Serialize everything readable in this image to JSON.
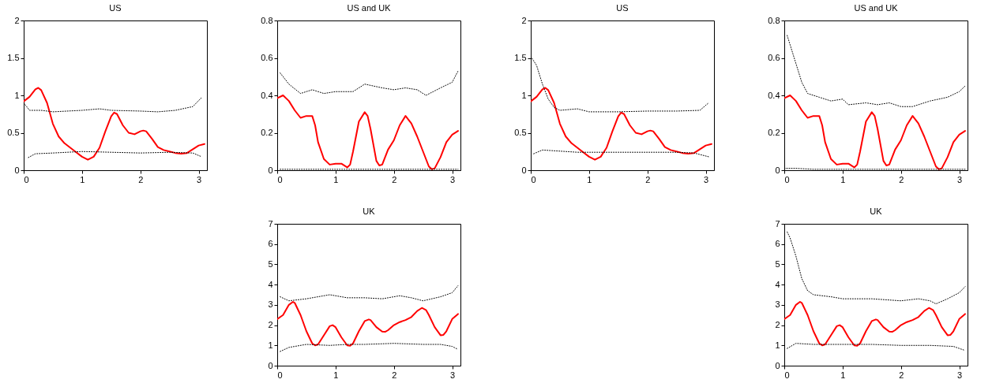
{
  "chart_data": [
    {
      "type": "line",
      "title": "US",
      "xlim": [
        0,
        3.1416
      ],
      "xticks": [
        0,
        1,
        2,
        3
      ],
      "ylim": [
        0,
        2
      ],
      "yticks": [
        0,
        0.5,
        1,
        1.5,
        2
      ],
      "grid": false,
      "series": [
        {
          "color": "#ff0000",
          "x": [
            0,
            0.1,
            0.2,
            0.25,
            0.3,
            0.4,
            0.5,
            0.6,
            0.7,
            0.8,
            0.9,
            1.0,
            1.1,
            1.2,
            1.3,
            1.4,
            1.5,
            1.55,
            1.6,
            1.7,
            1.8,
            1.9,
            2.0,
            2.05,
            2.1,
            2.2,
            2.3,
            2.4,
            2.5,
            2.6,
            2.7,
            2.8,
            2.9,
            3.0,
            3.1
          ],
          "values": [
            0.92,
            0.98,
            1.08,
            1.1,
            1.07,
            0.9,
            0.62,
            0.45,
            0.36,
            0.3,
            0.24,
            0.18,
            0.14,
            0.18,
            0.3,
            0.52,
            0.72,
            0.77,
            0.75,
            0.6,
            0.5,
            0.48,
            0.52,
            0.53,
            0.52,
            0.42,
            0.31,
            0.27,
            0.25,
            0.23,
            0.22,
            0.23,
            0.28,
            0.33,
            0.35
          ]
        },
        {
          "color": "#000000",
          "line_style": "dotted",
          "x": [
            0,
            0.1,
            0.3,
            0.5,
            1.0,
            1.3,
            1.5,
            2.0,
            2.3,
            2.6,
            2.9,
            3.05
          ],
          "values": [
            0.9,
            0.8,
            0.8,
            0.78,
            0.8,
            0.82,
            0.8,
            0.79,
            0.78,
            0.8,
            0.85,
            0.97
          ]
        },
        {
          "color": "#000000",
          "line_style": "dotted",
          "x": [
            0.08,
            0.2,
            0.5,
            1.0,
            1.5,
            2.0,
            2.5,
            2.9,
            3.05
          ],
          "values": [
            0.17,
            0.22,
            0.23,
            0.25,
            0.24,
            0.23,
            0.24,
            0.23,
            0.18
          ]
        }
      ]
    },
    {
      "type": "line",
      "title": "US and UK",
      "xlim": [
        0,
        3.1416
      ],
      "xticks": [
        0,
        1,
        2,
        3
      ],
      "ylim": [
        0,
        0.8
      ],
      "yticks": [
        0,
        0.2,
        0.4,
        0.6,
        0.8
      ],
      "grid": false,
      "series": [
        {
          "color": "#ff0000",
          "x": [
            0,
            0.1,
            0.2,
            0.3,
            0.4,
            0.5,
            0.6,
            0.65,
            0.7,
            0.8,
            0.9,
            1.0,
            1.1,
            1.2,
            1.25,
            1.3,
            1.4,
            1.5,
            1.55,
            1.6,
            1.7,
            1.75,
            1.8,
            1.9,
            2.0,
            2.1,
            2.2,
            2.3,
            2.4,
            2.5,
            2.6,
            2.65,
            2.7,
            2.8,
            2.9,
            3.0,
            3.1
          ],
          "values": [
            0.385,
            0.4,
            0.37,
            0.32,
            0.28,
            0.29,
            0.29,
            0.24,
            0.15,
            0.06,
            0.03,
            0.035,
            0.035,
            0.015,
            0.03,
            0.1,
            0.26,
            0.31,
            0.29,
            0.22,
            0.05,
            0.025,
            0.03,
            0.11,
            0.16,
            0.24,
            0.29,
            0.25,
            0.18,
            0.1,
            0.02,
            0.005,
            0.01,
            0.07,
            0.15,
            0.19,
            0.21
          ]
        },
        {
          "color": "#000000",
          "line_style": "dotted",
          "x": [
            0.05,
            0.2,
            0.4,
            0.6,
            0.8,
            1.0,
            1.3,
            1.5,
            1.8,
            2.0,
            2.2,
            2.4,
            2.55,
            2.8,
            3.0,
            3.1
          ],
          "values": [
            0.52,
            0.46,
            0.41,
            0.43,
            0.41,
            0.42,
            0.42,
            0.46,
            0.44,
            0.43,
            0.44,
            0.43,
            0.4,
            0.44,
            0.47,
            0.53
          ]
        },
        {
          "color": "#000000",
          "line_style": "dotted",
          "x": [
            0.05,
            1.0,
            2.0,
            3.1
          ],
          "values": [
            0.005,
            0.005,
            0.005,
            0.005
          ]
        }
      ]
    },
    {
      "type": "line",
      "title": "US",
      "xlim": [
        0,
        3.1416
      ],
      "xticks": [
        0,
        1,
        2,
        3
      ],
      "ylim": [
        0,
        2
      ],
      "yticks": [
        0,
        0.5,
        1,
        1.5,
        2
      ],
      "grid": false,
      "series": [
        {
          "color": "#ff0000",
          "x": [
            0,
            0.1,
            0.2,
            0.25,
            0.3,
            0.4,
            0.5,
            0.6,
            0.7,
            0.8,
            0.9,
            1.0,
            1.1,
            1.2,
            1.3,
            1.4,
            1.5,
            1.55,
            1.6,
            1.7,
            1.8,
            1.9,
            2.0,
            2.05,
            2.1,
            2.2,
            2.3,
            2.4,
            2.5,
            2.6,
            2.7,
            2.8,
            2.9,
            3.0,
            3.1
          ],
          "values": [
            0.92,
            0.98,
            1.08,
            1.1,
            1.07,
            0.9,
            0.62,
            0.45,
            0.36,
            0.3,
            0.24,
            0.18,
            0.14,
            0.18,
            0.3,
            0.52,
            0.72,
            0.77,
            0.75,
            0.6,
            0.5,
            0.48,
            0.52,
            0.53,
            0.52,
            0.42,
            0.31,
            0.27,
            0.25,
            0.23,
            0.22,
            0.23,
            0.28,
            0.33,
            0.35
          ]
        },
        {
          "color": "#000000",
          "line_style": "dotted",
          "x": [
            0,
            0.1,
            0.2,
            0.3,
            0.4,
            0.5,
            0.8,
            1.0,
            1.5,
            2.0,
            2.5,
            2.9,
            3.05
          ],
          "values": [
            1.52,
            1.4,
            1.15,
            0.95,
            0.84,
            0.8,
            0.82,
            0.78,
            0.78,
            0.79,
            0.79,
            0.8,
            0.9
          ]
        },
        {
          "color": "#000000",
          "line_style": "dotted",
          "x": [
            0.05,
            0.2,
            0.4,
            0.8,
            1.5,
            2.0,
            2.5,
            2.8,
            3.05
          ],
          "values": [
            0.22,
            0.27,
            0.26,
            0.24,
            0.24,
            0.24,
            0.24,
            0.23,
            0.18
          ]
        }
      ]
    },
    {
      "type": "line",
      "title": "US and UK",
      "xlim": [
        0,
        3.1416
      ],
      "xticks": [
        0,
        1,
        2,
        3
      ],
      "ylim": [
        0,
        0.8
      ],
      "yticks": [
        0,
        0.2,
        0.4,
        0.6,
        0.8
      ],
      "grid": false,
      "series": [
        {
          "color": "#ff0000",
          "x": [
            0,
            0.1,
            0.2,
            0.3,
            0.4,
            0.5,
            0.6,
            0.65,
            0.7,
            0.8,
            0.9,
            1.0,
            1.1,
            1.2,
            1.25,
            1.3,
            1.4,
            1.5,
            1.55,
            1.6,
            1.7,
            1.75,
            1.8,
            1.9,
            2.0,
            2.1,
            2.2,
            2.3,
            2.4,
            2.5,
            2.6,
            2.65,
            2.7,
            2.8,
            2.9,
            3.0,
            3.1
          ],
          "values": [
            0.385,
            0.4,
            0.37,
            0.32,
            0.28,
            0.29,
            0.29,
            0.24,
            0.15,
            0.06,
            0.03,
            0.035,
            0.035,
            0.015,
            0.03,
            0.1,
            0.26,
            0.31,
            0.29,
            0.22,
            0.05,
            0.025,
            0.03,
            0.11,
            0.16,
            0.24,
            0.29,
            0.25,
            0.18,
            0.1,
            0.02,
            0.005,
            0.01,
            0.07,
            0.15,
            0.19,
            0.21
          ]
        },
        {
          "color": "#000000",
          "line_style": "dotted",
          "x": [
            0.05,
            0.1,
            0.2,
            0.3,
            0.4,
            0.6,
            0.8,
            1.0,
            1.1,
            1.4,
            1.6,
            1.8,
            2.0,
            2.2,
            2.5,
            2.8,
            3.0,
            3.1
          ],
          "values": [
            0.72,
            0.67,
            0.57,
            0.47,
            0.41,
            0.39,
            0.37,
            0.38,
            0.35,
            0.36,
            0.35,
            0.36,
            0.34,
            0.34,
            0.37,
            0.39,
            0.42,
            0.45
          ]
        },
        {
          "color": "#000000",
          "line_style": "dotted",
          "x": [
            0,
            0.2,
            0.5,
            1.5,
            3.1
          ],
          "values": [
            0.01,
            0.01,
            0.005,
            0.005,
            0.005
          ]
        }
      ]
    },
    {
      "type": "line",
      "title": "UK",
      "xlim": [
        0,
        3.1416
      ],
      "xticks": [
        0,
        1,
        2,
        3
      ],
      "ylim": [
        0,
        7
      ],
      "yticks": [
        0,
        1,
        2,
        3,
        4,
        5,
        6,
        7
      ],
      "grid": false,
      "series": [
        {
          "color": "#ff0000",
          "x": [
            0,
            0.1,
            0.2,
            0.27,
            0.3,
            0.4,
            0.5,
            0.6,
            0.65,
            0.7,
            0.8,
            0.9,
            0.95,
            1.0,
            1.1,
            1.2,
            1.25,
            1.3,
            1.4,
            1.5,
            1.57,
            1.6,
            1.7,
            1.8,
            1.85,
            1.9,
            2.0,
            2.1,
            2.2,
            2.3,
            2.4,
            2.48,
            2.55,
            2.6,
            2.7,
            2.8,
            2.85,
            2.9,
            3.0,
            3.1
          ],
          "values": [
            2.3,
            2.5,
            3.0,
            3.15,
            3.1,
            2.5,
            1.7,
            1.1,
            1.0,
            1.05,
            1.5,
            1.95,
            2.0,
            1.9,
            1.4,
            1.0,
            0.98,
            1.1,
            1.7,
            2.2,
            2.28,
            2.25,
            1.9,
            1.68,
            1.67,
            1.75,
            2.0,
            2.15,
            2.25,
            2.4,
            2.7,
            2.85,
            2.75,
            2.5,
            1.9,
            1.5,
            1.52,
            1.7,
            2.3,
            2.55
          ]
        },
        {
          "color": "#000000",
          "line_style": "dotted",
          "x": [
            0.05,
            0.2,
            0.5,
            0.9,
            1.2,
            1.5,
            1.8,
            2.1,
            2.3,
            2.5,
            2.8,
            3.0,
            3.1
          ],
          "values": [
            3.4,
            3.2,
            3.3,
            3.5,
            3.35,
            3.35,
            3.3,
            3.45,
            3.35,
            3.2,
            3.4,
            3.6,
            3.95
          ]
        },
        {
          "color": "#000000",
          "line_style": "dotted",
          "x": [
            0.05,
            0.2,
            0.5,
            0.9,
            1.2,
            1.5,
            2.0,
            2.5,
            2.8,
            3.0,
            3.1
          ],
          "values": [
            0.7,
            0.9,
            1.05,
            1.0,
            1.05,
            1.05,
            1.1,
            1.05,
            1.05,
            0.95,
            0.8
          ]
        }
      ]
    },
    {
      "type": "line",
      "title": "UK",
      "xlim": [
        0,
        3.1416
      ],
      "xticks": [
        0,
        1,
        2,
        3
      ],
      "ylim": [
        0,
        7
      ],
      "yticks": [
        0,
        1,
        2,
        3,
        4,
        5,
        6,
        7
      ],
      "grid": false,
      "series": [
        {
          "color": "#ff0000",
          "x": [
            0,
            0.1,
            0.2,
            0.27,
            0.3,
            0.4,
            0.5,
            0.6,
            0.65,
            0.7,
            0.8,
            0.9,
            0.95,
            1.0,
            1.1,
            1.2,
            1.25,
            1.3,
            1.4,
            1.5,
            1.57,
            1.6,
            1.7,
            1.8,
            1.85,
            1.9,
            2.0,
            2.1,
            2.2,
            2.3,
            2.4,
            2.48,
            2.55,
            2.6,
            2.7,
            2.8,
            2.85,
            2.9,
            3.0,
            3.1
          ],
          "values": [
            2.3,
            2.5,
            3.0,
            3.15,
            3.1,
            2.5,
            1.7,
            1.1,
            1.0,
            1.05,
            1.5,
            1.95,
            2.0,
            1.9,
            1.4,
            1.0,
            0.98,
            1.1,
            1.7,
            2.2,
            2.28,
            2.25,
            1.9,
            1.68,
            1.67,
            1.75,
            2.0,
            2.15,
            2.25,
            2.4,
            2.7,
            2.85,
            2.75,
            2.5,
            1.9,
            1.5,
            1.52,
            1.7,
            2.3,
            2.55
          ]
        },
        {
          "color": "#000000",
          "line_style": "dotted",
          "x": [
            0.05,
            0.1,
            0.2,
            0.3,
            0.4,
            0.5,
            0.8,
            1.0,
            1.5,
            2.0,
            2.3,
            2.5,
            2.6,
            2.8,
            3.0,
            3.1
          ],
          "values": [
            6.6,
            6.3,
            5.4,
            4.3,
            3.7,
            3.5,
            3.4,
            3.3,
            3.3,
            3.2,
            3.3,
            3.2,
            3.05,
            3.3,
            3.6,
            3.9
          ]
        },
        {
          "color": "#000000",
          "line_style": "dotted",
          "x": [
            0.05,
            0.2,
            0.5,
            1.0,
            1.5,
            2.0,
            2.5,
            2.9,
            3.1
          ],
          "values": [
            0.85,
            1.1,
            1.05,
            1.05,
            1.05,
            1.0,
            1.0,
            0.95,
            0.75
          ]
        }
      ]
    }
  ]
}
